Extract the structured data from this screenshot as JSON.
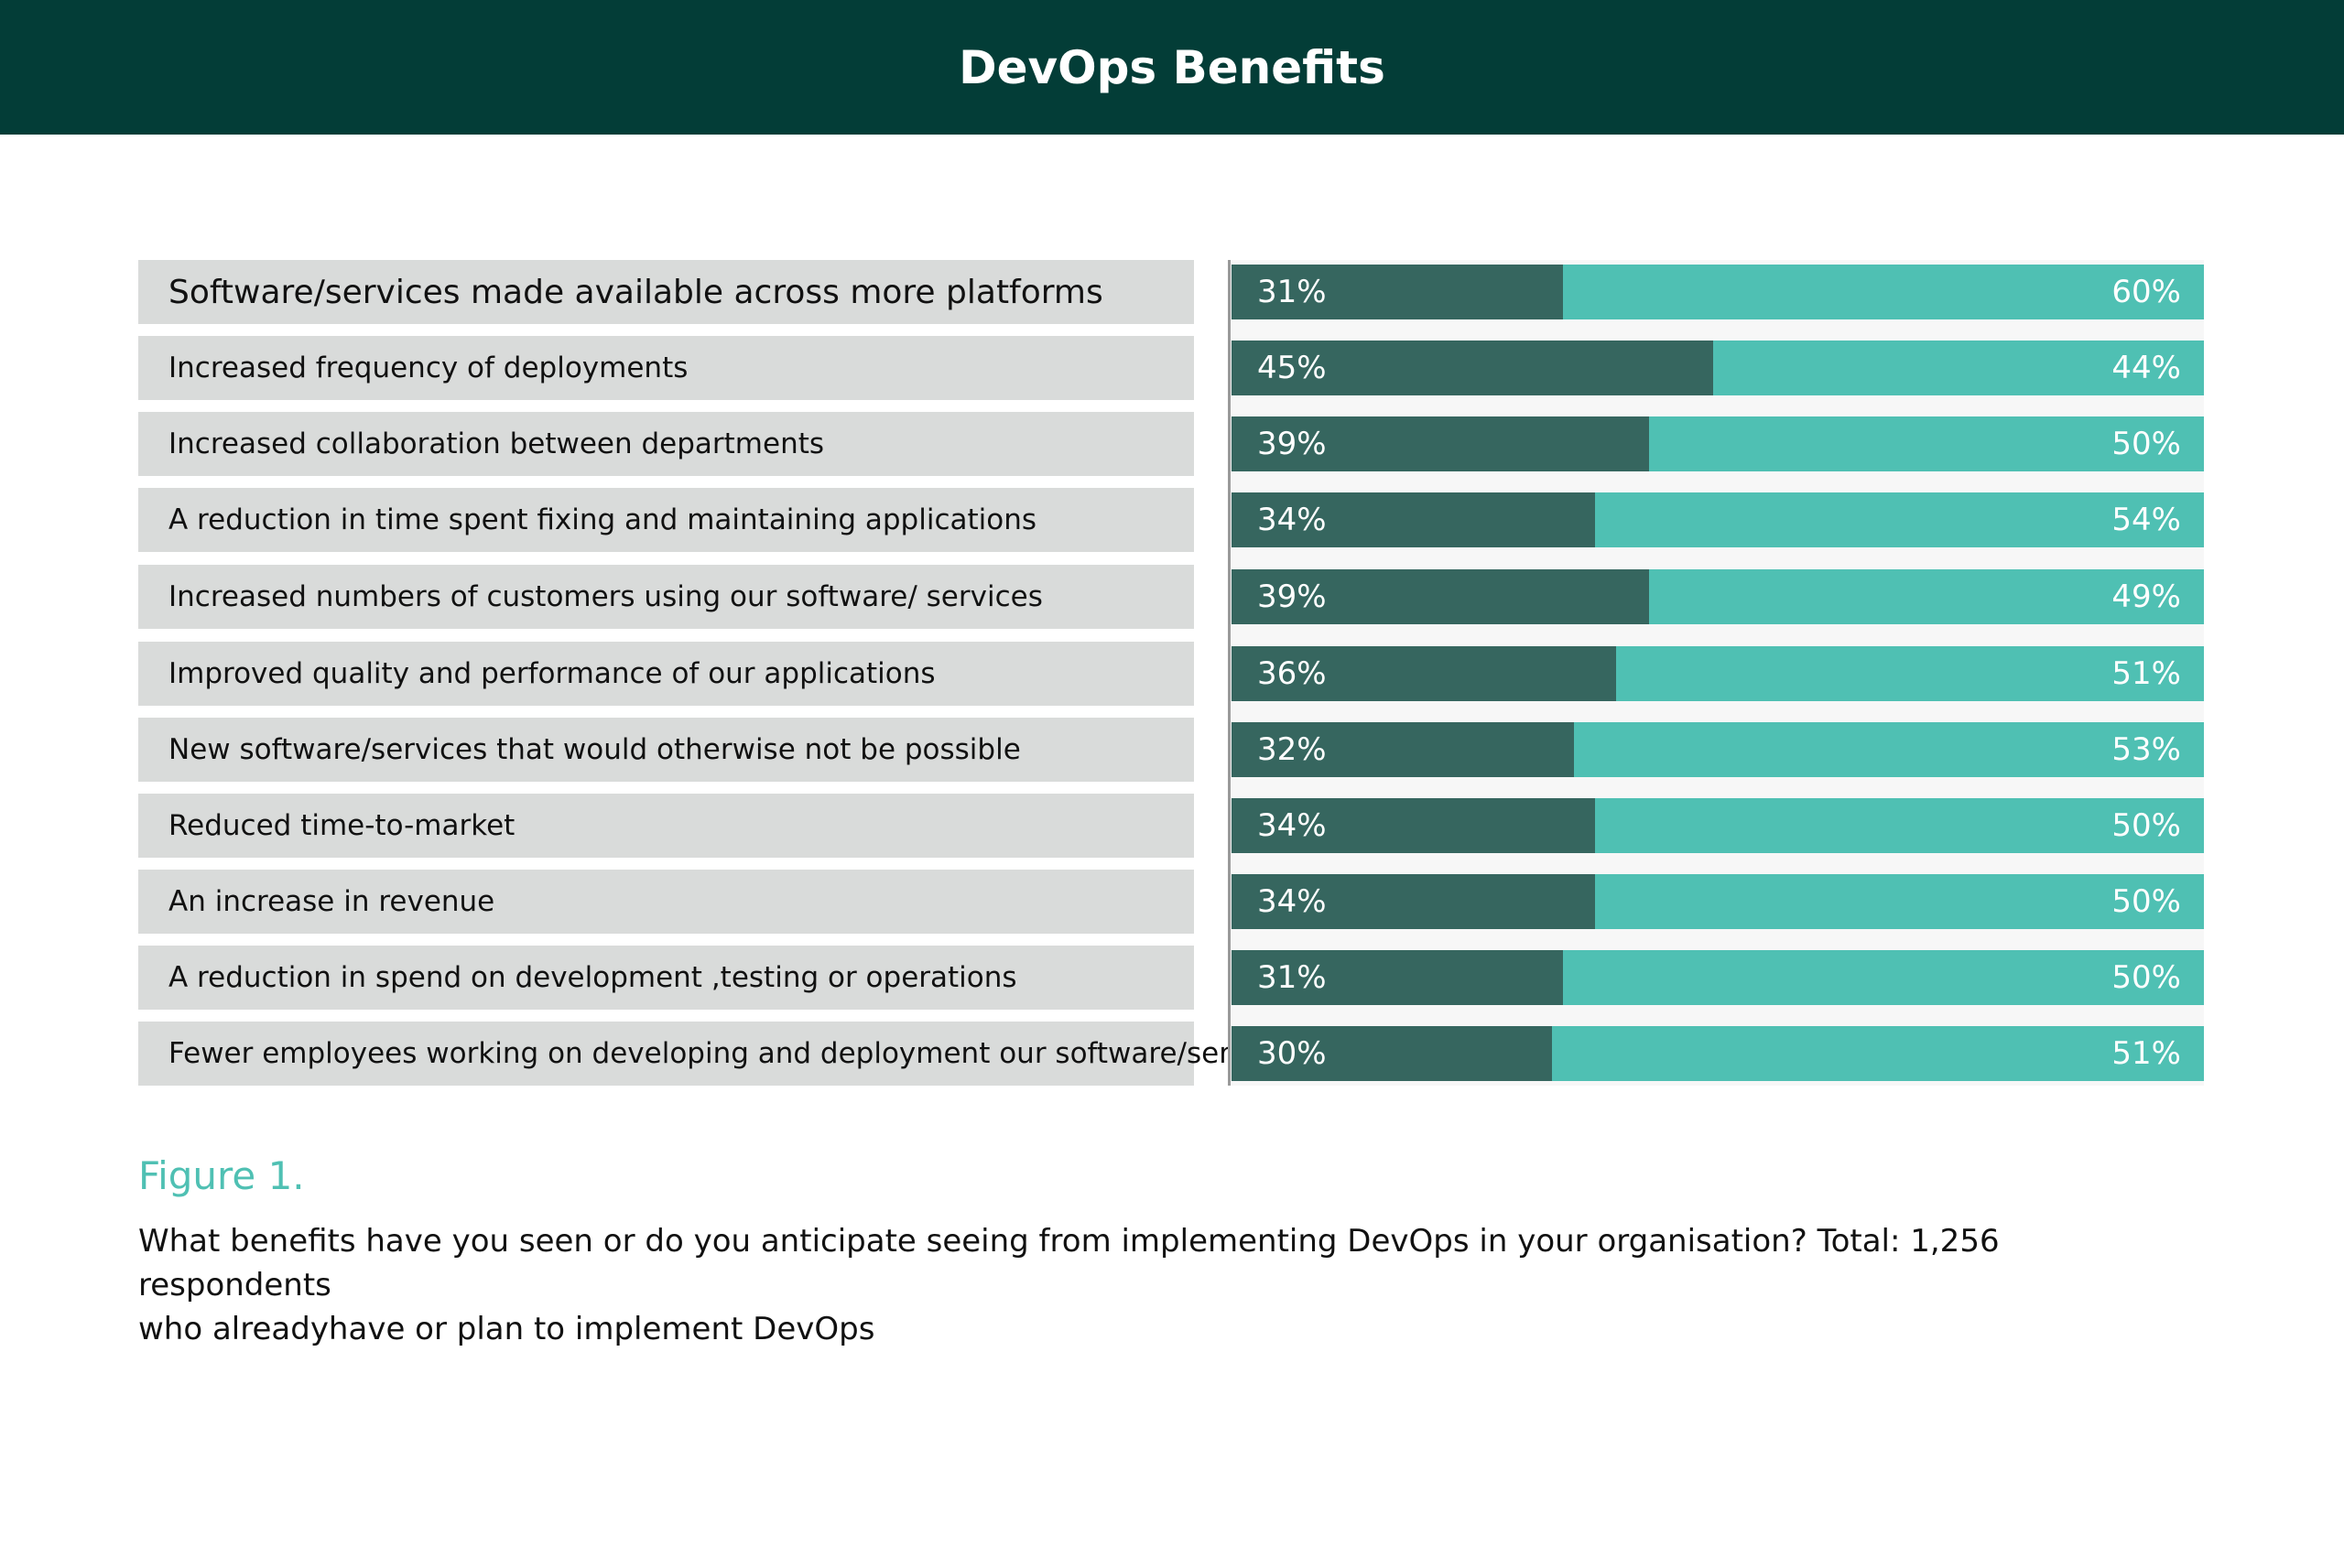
{
  "header": {
    "title": "DevOps Benefits"
  },
  "chart_data": {
    "type": "bar",
    "orientation": "horizontal",
    "stacked": true,
    "categories": [
      "Software/services made available across more platforms",
      "Increased frequency of deployments",
      "Increased collaboration between departments",
      "A reduction in time spent fixing and maintaining applications",
      "Increased numbers of customers using our software/ services",
      "Improved quality and performance of our applications",
      "New software/services that would otherwise not be possible",
      "Reduced time-to-market",
      "An increase in revenue",
      "A reduction in spend on development ,testing or operations",
      "Fewer employees working on developing and deployment our software/services"
    ],
    "series": [
      {
        "name": "series_1",
        "color": "#36665f",
        "values": [
          31,
          45,
          39,
          34,
          39,
          36,
          32,
          34,
          34,
          31,
          30
        ]
      },
      {
        "name": "series_2",
        "color": "#4fc0b3",
        "values": [
          60,
          44,
          50,
          54,
          49,
          51,
          53,
          50,
          50,
          50,
          51
        ]
      }
    ],
    "value_labels": [
      [
        "31%",
        "60%"
      ],
      [
        "45%",
        "44%"
      ],
      [
        "39%",
        "50%"
      ],
      [
        "34%",
        "54%"
      ],
      [
        "39%",
        "49%"
      ],
      [
        "36%",
        "51%"
      ],
      [
        "32%",
        "53%"
      ],
      [
        "34%",
        "50%"
      ],
      [
        "34%",
        "50%"
      ],
      [
        "31%",
        "50%"
      ],
      [
        "30%",
        "51%"
      ]
    ],
    "legend": "none",
    "title": "DevOps Benefits"
  },
  "figure": {
    "label": "Figure 1.",
    "caption_line1": "What benefits have you seen or do you anticipate seeing from implementing DevOps in your organisation? Total: 1,256 respondents",
    "caption_line2": "who alreadyhave or plan to implement DevOps"
  }
}
